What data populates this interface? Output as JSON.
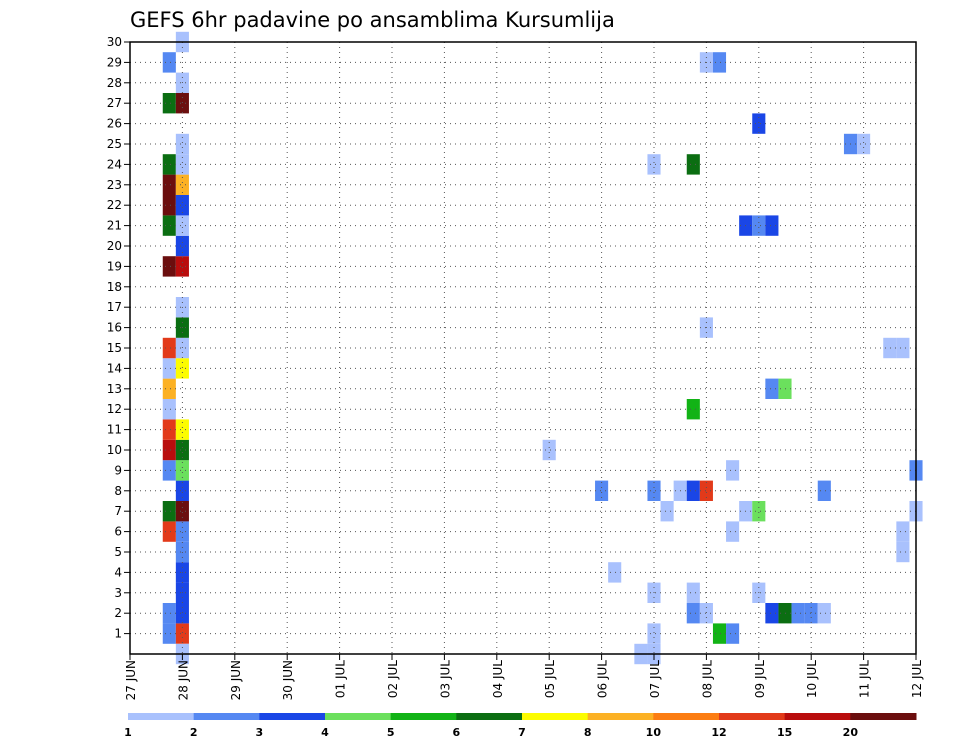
{
  "chart_data": {
    "type": "heatmap",
    "title": "GEFS 6hr padavine po ansamblima Kursumlija",
    "xlabel": "",
    "ylabel": "",
    "x_ticks": [
      "27 JUN",
      "28 JUN",
      "29 JUN",
      "30 JUN",
      "01 JUL",
      "02 JUL",
      "03 JUL",
      "04 JUL",
      "05 JUL",
      "06 JUL",
      "07 JUL",
      "08 JUL",
      "09 JUL",
      "10 JUL",
      "11 JUL",
      "12 JUL"
    ],
    "xlim_days": [
      0,
      15
    ],
    "y_ticks": [
      1,
      2,
      3,
      4,
      5,
      6,
      7,
      8,
      9,
      10,
      11,
      12,
      13,
      14,
      15,
      16,
      17,
      18,
      19,
      20,
      21,
      22,
      23,
      24,
      25,
      26,
      27,
      28,
      29,
      30
    ],
    "ylim": [
      0,
      30
    ],
    "grid": true,
    "step_hours": 6,
    "levels": [
      "1",
      "2",
      "3",
      "4",
      "5",
      "6",
      "7",
      "8",
      "10",
      "12",
      "15",
      "20"
    ],
    "colors": [
      "#a9c1fd",
      "#5588f2",
      "#1a46e6",
      "#6be05d",
      "#12b316",
      "#0b6e12",
      "#fcfc00",
      "#fcb124",
      "#fc7d12",
      "#e23a1a",
      "#b90d0d",
      "#6b0e0e"
    ],
    "cells": [
      {
        "day": 0.75,
        "member": 1,
        "bin": 1
      },
      {
        "day": 1.0,
        "member": 1,
        "bin": 9
      },
      {
        "day": 0.75,
        "member": 2,
        "bin": 1
      },
      {
        "day": 1.0,
        "member": 2,
        "bin": 2
      },
      {
        "day": 1.0,
        "member": 3,
        "bin": 2
      },
      {
        "day": 1.0,
        "member": 4,
        "bin": 2
      },
      {
        "day": 1.0,
        "member": 5,
        "bin": 1
      },
      {
        "day": 1.0,
        "member": 6,
        "bin": 1
      },
      {
        "day": 0.75,
        "member": 6,
        "bin": 9
      },
      {
        "day": 0.75,
        "member": 7,
        "bin": 5
      },
      {
        "day": 1.0,
        "member": 7,
        "bin": 11
      },
      {
        "day": 1.0,
        "member": 8,
        "bin": 2
      },
      {
        "day": 0.75,
        "member": 9,
        "bin": 1
      },
      {
        "day": 1.0,
        "member": 9,
        "bin": 3
      },
      {
        "day": 0.75,
        "member": 10,
        "bin": 10
      },
      {
        "day": 1.0,
        "member": 10,
        "bin": 5
      },
      {
        "day": 0.75,
        "member": 11,
        "bin": 9
      },
      {
        "day": 1.0,
        "member": 11,
        "bin": 6
      },
      {
        "day": 0.75,
        "member": 12,
        "bin": 0
      },
      {
        "day": 0.75,
        "member": 13,
        "bin": 7
      },
      {
        "day": 0.75,
        "member": 14,
        "bin": 0
      },
      {
        "day": 1.0,
        "member": 14,
        "bin": 6
      },
      {
        "day": 0.75,
        "member": 15,
        "bin": 9
      },
      {
        "day": 1.0,
        "member": 15,
        "bin": 0
      },
      {
        "day": 1.0,
        "member": 16,
        "bin": 5
      },
      {
        "day": 1.0,
        "member": 17,
        "bin": 0
      },
      {
        "day": 0.75,
        "member": 19,
        "bin": 11
      },
      {
        "day": 1.0,
        "member": 19,
        "bin": 10
      },
      {
        "day": 1.0,
        "member": 20,
        "bin": 2
      },
      {
        "day": 0.75,
        "member": 21,
        "bin": 5
      },
      {
        "day": 1.0,
        "member": 21,
        "bin": 0
      },
      {
        "day": 0.75,
        "member": 22,
        "bin": 11
      },
      {
        "day": 1.0,
        "member": 22,
        "bin": 2
      },
      {
        "day": 0.75,
        "member": 23,
        "bin": 11
      },
      {
        "day": 1.0,
        "member": 23,
        "bin": 7
      },
      {
        "day": 0.75,
        "member": 24,
        "bin": 5
      },
      {
        "day": 1.0,
        "member": 24,
        "bin": 0
      },
      {
        "day": 1.0,
        "member": 25,
        "bin": 0
      },
      {
        "day": 0.75,
        "member": 27,
        "bin": 5
      },
      {
        "day": 1.0,
        "member": 27,
        "bin": 11
      },
      {
        "day": 1.0,
        "member": 28,
        "bin": 0
      },
      {
        "day": 0.75,
        "member": 29,
        "bin": 1
      },
      {
        "day": 1.0,
        "member": 30,
        "bin": 0
      },
      {
        "day": 1.0,
        "member": 0,
        "bin": 0
      },
      {
        "day": 10.0,
        "member": 1,
        "bin": 0
      },
      {
        "day": 11.25,
        "member": 1,
        "bin": 4
      },
      {
        "day": 11.5,
        "member": 1,
        "bin": 1
      },
      {
        "day": 10.75,
        "member": 2,
        "bin": 1
      },
      {
        "day": 11.0,
        "member": 2,
        "bin": 0
      },
      {
        "day": 12.25,
        "member": 2,
        "bin": 2
      },
      {
        "day": 12.5,
        "member": 2,
        "bin": 5
      },
      {
        "day": 12.75,
        "member": 2,
        "bin": 1
      },
      {
        "day": 13.0,
        "member": 2,
        "bin": 1
      },
      {
        "day": 13.25,
        "member": 2,
        "bin": 0
      },
      {
        "day": 10.0,
        "member": 3,
        "bin": 0
      },
      {
        "day": 10.75,
        "member": 3,
        "bin": 0
      },
      {
        "day": 12.0,
        "member": 3,
        "bin": 0
      },
      {
        "day": 9.25,
        "member": 4,
        "bin": 0
      },
      {
        "day": 11.5,
        "member": 6,
        "bin": 0
      },
      {
        "day": 14.75,
        "member": 6,
        "bin": 0
      },
      {
        "day": 14.75,
        "member": 5,
        "bin": 0
      },
      {
        "day": 10.25,
        "member": 7,
        "bin": 0
      },
      {
        "day": 11.75,
        "member": 7,
        "bin": 0
      },
      {
        "day": 12.0,
        "member": 7,
        "bin": 3
      },
      {
        "day": 15.0,
        "member": 7,
        "bin": 0
      },
      {
        "day": 9.0,
        "member": 8,
        "bin": 1
      },
      {
        "day": 10.0,
        "member": 8,
        "bin": 1
      },
      {
        "day": 10.5,
        "member": 8,
        "bin": 0
      },
      {
        "day": 10.75,
        "member": 8,
        "bin": 2
      },
      {
        "day": 11.0,
        "member": 8,
        "bin": 9
      },
      {
        "day": 13.25,
        "member": 8,
        "bin": 1
      },
      {
        "day": 11.5,
        "member": 9,
        "bin": 0
      },
      {
        "day": 15.0,
        "member": 9,
        "bin": 1
      },
      {
        "day": 8.0,
        "member": 10,
        "bin": 0
      },
      {
        "day": 10.75,
        "member": 12,
        "bin": 4
      },
      {
        "day": 12.25,
        "member": 13,
        "bin": 1
      },
      {
        "day": 12.5,
        "member": 13,
        "bin": 3
      },
      {
        "day": 14.5,
        "member": 15,
        "bin": 0
      },
      {
        "day": 14.75,
        "member": 15,
        "bin": 0
      },
      {
        "day": 11.0,
        "member": 16,
        "bin": 0
      },
      {
        "day": 11.75,
        "member": 21,
        "bin": 2
      },
      {
        "day": 12.0,
        "member": 21,
        "bin": 1
      },
      {
        "day": 12.25,
        "member": 21,
        "bin": 2
      },
      {
        "day": 10.0,
        "member": 24,
        "bin": 0
      },
      {
        "day": 10.75,
        "member": 24,
        "bin": 5
      },
      {
        "day": 13.75,
        "member": 25,
        "bin": 1
      },
      {
        "day": 14.0,
        "member": 25,
        "bin": 0
      },
      {
        "day": 12.0,
        "member": 26,
        "bin": 2
      },
      {
        "day": 11.0,
        "member": 29,
        "bin": 0
      },
      {
        "day": 11.25,
        "member": 29,
        "bin": 1
      },
      {
        "day": 9.75,
        "member": 0,
        "bin": 0
      },
      {
        "day": 10.0,
        "member": 0,
        "bin": 0
      }
    ]
  }
}
